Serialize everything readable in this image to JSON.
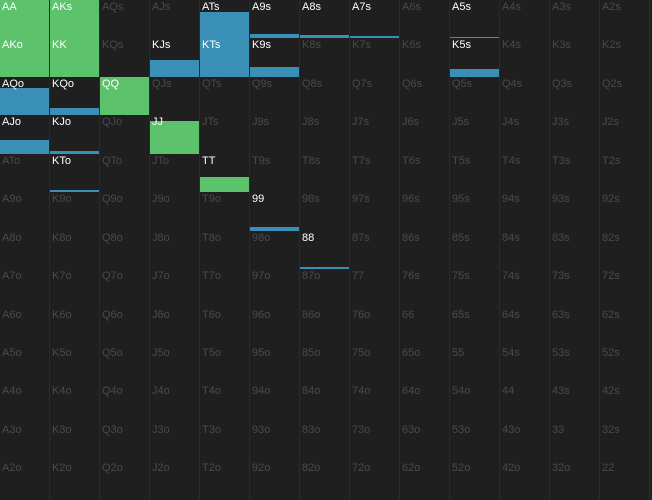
{
  "colors": {
    "green": "#5cc26b",
    "blue": "#3a8fb7",
    "bg": "#1f1f1f",
    "inactive_text": "#4a4a4a",
    "active_text": "#ffffff"
  },
  "ranks": [
    "A",
    "K",
    "Q",
    "J",
    "T",
    "9",
    "8",
    "7",
    "6",
    "5",
    "4",
    "3",
    "2"
  ],
  "cells": [
    [
      "AA",
      "AKs",
      "AQs",
      "AJs",
      "ATs",
      "A9s",
      "A8s",
      "A7s",
      "A6s",
      "A5s",
      "A4s",
      "A3s",
      "A2s"
    ],
    [
      "AKo",
      "KK",
      "KQs",
      "KJs",
      "KTs",
      "K9s",
      "K8s",
      "K7s",
      "K6s",
      "K5s",
      "K4s",
      "K3s",
      "K2s"
    ],
    [
      "AQo",
      "KQo",
      "QQ",
      "QJs",
      "QTs",
      "Q9s",
      "Q8s",
      "Q7s",
      "Q6s",
      "Q5s",
      "Q4s",
      "Q3s",
      "Q2s"
    ],
    [
      "AJo",
      "KJo",
      "QJo",
      "JJ",
      "JTs",
      "J9s",
      "J8s",
      "J7s",
      "J6s",
      "J5s",
      "J4s",
      "J3s",
      "J2s"
    ],
    [
      "ATo",
      "KTo",
      "QTo",
      "JTo",
      "TT",
      "T9s",
      "T8s",
      "T7s",
      "T6s",
      "T5s",
      "T4s",
      "T3s",
      "T2s"
    ],
    [
      "A9o",
      "K9o",
      "Q9o",
      "J9o",
      "T9o",
      "99",
      "98s",
      "97s",
      "96s",
      "95s",
      "94s",
      "93s",
      "92s"
    ],
    [
      "A8o",
      "K8o",
      "Q8o",
      "J8o",
      "T8o",
      "98o",
      "88",
      "87s",
      "86s",
      "85s",
      "84s",
      "83s",
      "82s"
    ],
    [
      "A7o",
      "K7o",
      "Q7o",
      "J7o",
      "T7o",
      "97o",
      "87o",
      "77",
      "76s",
      "75s",
      "74s",
      "73s",
      "72s"
    ],
    [
      "A6o",
      "K6o",
      "Q6o",
      "J6o",
      "T6o",
      "96o",
      "86o",
      "76o",
      "66",
      "65s",
      "64s",
      "63s",
      "62s"
    ],
    [
      "A5o",
      "K5o",
      "Q5o",
      "J5o",
      "T5o",
      "95o",
      "85o",
      "75o",
      "65o",
      "55",
      "54s",
      "53s",
      "52s"
    ],
    [
      "A4o",
      "K4o",
      "Q4o",
      "J4o",
      "T4o",
      "94o",
      "84o",
      "74o",
      "64o",
      "54o",
      "44",
      "43s",
      "42s"
    ],
    [
      "A3o",
      "K3o",
      "Q3o",
      "J3o",
      "T3o",
      "93o",
      "83o",
      "73o",
      "63o",
      "53o",
      "43o",
      "33",
      "32s"
    ],
    [
      "A2o",
      "K2o",
      "Q2o",
      "J2o",
      "T2o",
      "92o",
      "82o",
      "72o",
      "62o",
      "52o",
      "42o",
      "32o",
      "22"
    ]
  ],
  "active": [
    "AA",
    "AKs",
    "ATs",
    "A9s",
    "A8s",
    "A7s",
    "A5s",
    "AKo",
    "KK",
    "KJs",
    "KTs",
    "K9s",
    "K5s",
    "AQo",
    "KQo",
    "QQ",
    "AJo",
    "KJo",
    "JJ",
    "KTo",
    "TT",
    "99",
    "88"
  ],
  "strategy": {
    "AA": {
      "green": 1.0,
      "blue": 0.0
    },
    "AKs": {
      "green": 1.0,
      "blue": 0.0
    },
    "ATs": {
      "green": 0.0,
      "blue": 0.7
    },
    "A9s": {
      "green": 0.0,
      "blue": 0.12
    },
    "A8s": {
      "green": 0.0,
      "blue": 0.1
    },
    "A7s": {
      "green": 0.0,
      "blue": 0.07
    },
    "A5s": {
      "green": 0.0,
      "blue": 0.05
    },
    "AKo": {
      "green": 1.0,
      "blue": 0.0
    },
    "KK": {
      "green": 1.0,
      "blue": 0.0
    },
    "KJs": {
      "green": 0.0,
      "blue": 0.45
    },
    "KTs": {
      "green": 0.0,
      "blue": 1.0
    },
    "K9s": {
      "green": 0.0,
      "blue": 0.25
    },
    "K5s": {
      "green": 0.0,
      "blue": 0.2
    },
    "AQo": {
      "green": 0.0,
      "blue": 0.7
    },
    "KQo": {
      "green": 0.0,
      "blue": 0.2
    },
    "QQ": {
      "green": 1.0,
      "blue": 0.0
    },
    "AJo": {
      "green": 0.0,
      "blue": 0.35
    },
    "KJo": {
      "green": 0.0,
      "blue": 0.08
    },
    "JJ": {
      "green": 0.85,
      "blue": 0.0
    },
    "KTo": {
      "green": 0.0,
      "blue": 0.06
    },
    "TT": {
      "green": 0.4,
      "blue": 0.0
    },
    "99": {
      "green": 0.0,
      "blue": 0.1
    },
    "88": {
      "green": 0.0,
      "blue": 0.06
    }
  }
}
